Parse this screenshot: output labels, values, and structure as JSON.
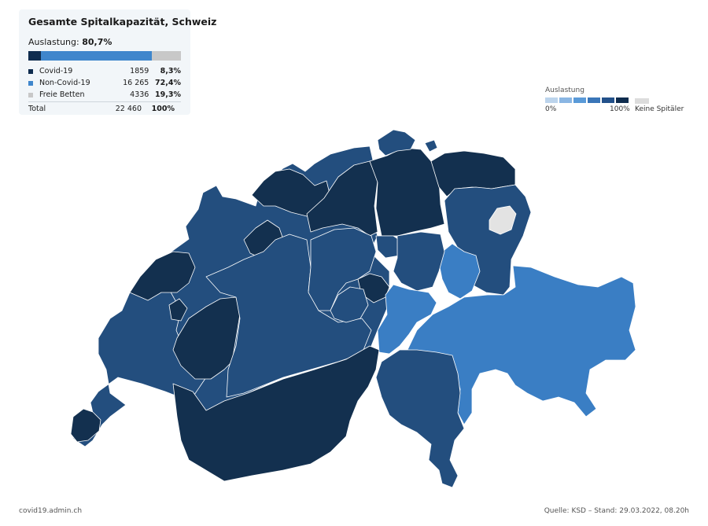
{
  "panel": {
    "title": "Gesamte Spitalkapazität, Schweiz",
    "utilization_label": "Auslastung:",
    "utilization_value": "80,7%",
    "rows": [
      {
        "label": "Covid-19",
        "count": "1859",
        "percent": "8,3%",
        "color": "#0f2c4e",
        "share": 8.3
      },
      {
        "label": "Non-Covid-19",
        "count": "16 265",
        "percent": "72,4%",
        "color": "#3f86cc",
        "share": 72.4
      },
      {
        "label": "Freie Betten",
        "count": "4336",
        "percent": "19,3%",
        "color": "#c8c8c8",
        "share": 19.3
      }
    ],
    "total": {
      "label": "Total",
      "count": "22 460",
      "percent": "100%"
    }
  },
  "legend": {
    "title": "Auslastung",
    "min_label": "0%",
    "max_label": "100%",
    "no_hospital_label": "Keine Spitäler",
    "scale_colors": [
      "#bcd4ec",
      "#8ab6e3",
      "#5a9ad8",
      "#3a76b8",
      "#23518a",
      "#0f2c4e"
    ],
    "no_hospital_color": "#dcdcdc"
  },
  "footer": {
    "source_left": "covid19.admin.ch",
    "source_right": "Quelle: KSD – Stand: 29.03.2022, 08.20h"
  },
  "map": {
    "colors": {
      "darkest": "#13304f",
      "dark": "#234e7e",
      "medium": "#3a7ec4",
      "no_hospitals": "#e3e3e3"
    }
  }
}
